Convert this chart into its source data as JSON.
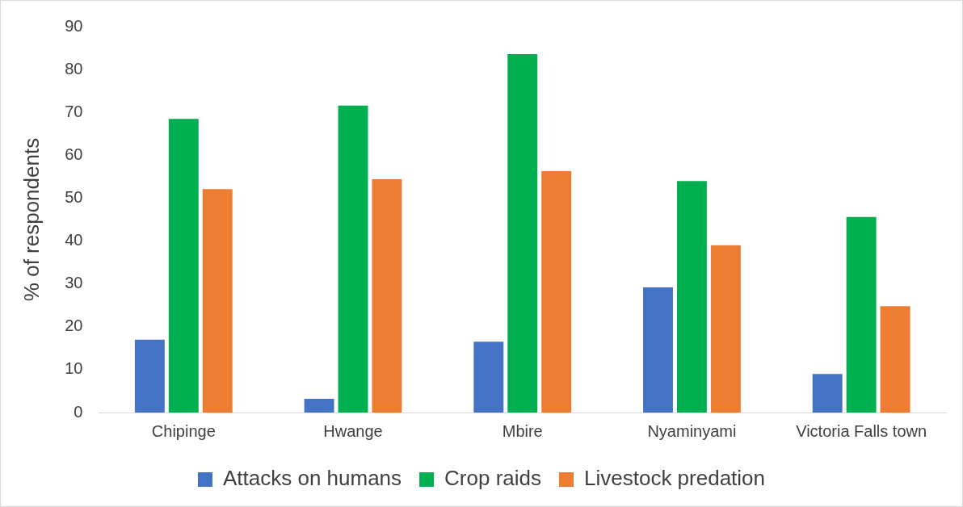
{
  "chart_data": {
    "type": "bar",
    "ylabel": "% of respondents",
    "categories": [
      "Chipinge",
      "Hwange",
      "Mbire",
      "Nyaminyami",
      "Victoria Falls town"
    ],
    "series": [
      {
        "name": "Attacks on humans",
        "color": "#4472c4",
        "values": [
          17.0,
          3.2,
          16.5,
          29.2,
          9.0
        ]
      },
      {
        "name": "Crop raids",
        "color": "#00b050",
        "values": [
          68.5,
          71.6,
          83.6,
          54.0,
          45.6
        ]
      },
      {
        "name": "Livestock predation",
        "color": "#ed7d31",
        "values": [
          52.1,
          54.4,
          56.3,
          39.0,
          24.8
        ]
      }
    ],
    "ylim": [
      0,
      90
    ],
    "yticks": [
      0,
      10,
      20,
      30,
      40,
      50,
      60,
      70,
      80,
      90
    ],
    "grid": false,
    "legend": "bottom"
  }
}
